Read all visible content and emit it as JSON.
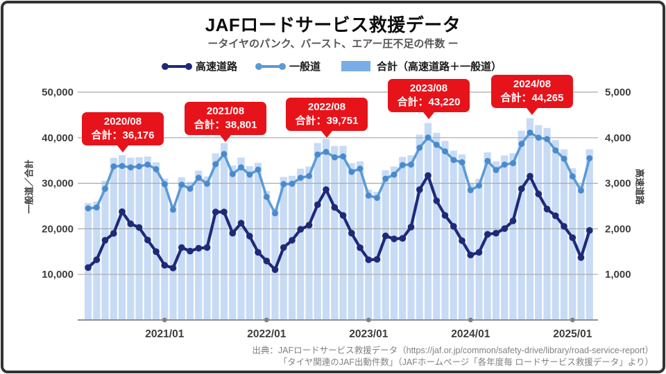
{
  "header": {
    "title": "JAFロードサービス救援データ",
    "subtitle": "ータイヤのパンク、バースト、エアー圧不足の件数 ー"
  },
  "legend": {
    "items": [
      {
        "label": "高速道路",
        "marker": "line-dots"
      },
      {
        "label": "一般道",
        "marker": "line-dots"
      },
      {
        "label": "合計（高速道路＋一般道）",
        "marker": "bar-swatch"
      }
    ]
  },
  "axes": {
    "left_title": "一般道／合計",
    "right_title": "高速道路",
    "left_ticks": [
      "50,000",
      "40,000",
      "30,000",
      "20,000",
      "10,000"
    ],
    "right_ticks": [
      "5,000",
      "4,000",
      "3,000",
      "2,000",
      "1,000"
    ],
    "x_ticks": [
      {
        "label": "2021/01",
        "month": "2021/01"
      },
      {
        "label": "2022/01",
        "month": "2022/01"
      },
      {
        "label": "2023/01",
        "month": "2023/01"
      },
      {
        "label": "2024/01",
        "month": "2024/01"
      },
      {
        "label": "2025/01",
        "month": "2025/01"
      }
    ]
  },
  "callouts": [
    {
      "date": "2020/08",
      "total": "合計：36,176"
    },
    {
      "date": "2021/08",
      "total": "合計：38,801"
    },
    {
      "date": "2022/08",
      "total": "合計：39,751"
    },
    {
      "date": "2023/08",
      "total": "合計：43,220"
    },
    {
      "date": "2024/08",
      "total": "合計：44,265"
    }
  ],
  "source": {
    "line1": "出典：JAFロードサービス救援データ（https://jaf.or.jp/common/safety-drive/library/road-service-report）",
    "line2": "「タイヤ関連のJAF出動件数」（JAFホームページ「各年度毎 ロードサービス救援データ」より）"
  },
  "colors": {
    "bar": "#c7dbf5",
    "bar_legend": "#7aace5",
    "general_line": "#5b9bd5",
    "general_dot": "#4a89cd",
    "highway_line": "#1e2a78",
    "red": "#e7131b",
    "grid": "#a8a8a8",
    "axis": "#8a8f98",
    "tick_text": "#3d3d3d",
    "x_dot": "#808080"
  },
  "chart_data": {
    "type": "bar+line",
    "title": "JAFロードサービス救援データ",
    "subtitle": "タイヤのパンク、バースト、エアー圧不足の件数",
    "x": [
      "2020/04",
      "2020/05",
      "2020/06",
      "2020/07",
      "2020/08",
      "2020/09",
      "2020/10",
      "2020/11",
      "2020/12",
      "2021/01",
      "2021/02",
      "2021/03",
      "2021/04",
      "2021/05",
      "2021/06",
      "2021/07",
      "2021/08",
      "2021/09",
      "2021/10",
      "2021/11",
      "2021/12",
      "2022/01",
      "2022/02",
      "2022/03",
      "2022/04",
      "2022/05",
      "2022/06",
      "2022/07",
      "2022/08",
      "2022/09",
      "2022/10",
      "2022/11",
      "2022/12",
      "2023/01",
      "2023/02",
      "2023/03",
      "2023/04",
      "2023/05",
      "2023/06",
      "2023/07",
      "2023/08",
      "2023/09",
      "2023/10",
      "2023/11",
      "2023/12",
      "2024/01",
      "2024/02",
      "2024/03",
      "2024/04",
      "2024/05",
      "2024/06",
      "2024/07",
      "2024/08",
      "2024/09",
      "2024/10",
      "2024/11",
      "2024/12",
      "2025/01",
      "2025/02",
      "2025/03"
    ],
    "series": [
      {
        "name": "一般道",
        "type": "line",
        "axis": "left",
        "values": [
          24500,
          24700,
          28800,
          33700,
          33800,
          33500,
          33700,
          34100,
          33090,
          29800,
          24200,
          29700,
          28800,
          31200,
          29900,
          34200,
          36430,
          32000,
          33500,
          31900,
          33000,
          27000,
          23400,
          29800,
          29900,
          31200,
          31600,
          36300,
          36891,
          35700,
          35900,
          32500,
          33200,
          27300,
          26800,
          31000,
          31900,
          34000,
          34100,
          37800,
          40050,
          38450,
          37000,
          35100,
          34600,
          28500,
          29500,
          34900,
          32900,
          34100,
          34400,
          38650,
          41110,
          40000,
          39700,
          37200,
          35400,
          31500,
          28400,
          35500
        ]
      },
      {
        "name": "高速道路",
        "type": "line",
        "axis": "right",
        "values": [
          1150,
          1320,
          1750,
          1900,
          2376,
          2110,
          2030,
          1755,
          1500,
          1200,
          1140,
          1590,
          1510,
          1575,
          1590,
          2370,
          2371,
          1905,
          2125,
          1840,
          1485,
          1295,
          1105,
          1590,
          1750,
          1990,
          2080,
          2530,
          2860,
          2470,
          2295,
          1905,
          1585,
          1320,
          1330,
          1845,
          1780,
          1790,
          2040,
          2860,
          3170,
          2615,
          2295,
          2055,
          1740,
          1425,
          1485,
          1880,
          1905,
          2005,
          2175,
          2880,
          3155,
          2765,
          2435,
          2285,
          2055,
          1805,
          1370,
          1965
        ]
      },
      {
        "name": "合計（高速道路＋一般道）",
        "type": "bar",
        "axis": "left",
        "values": [
          25650,
          26020,
          30550,
          35600,
          36176,
          35610,
          35730,
          35855,
          34590,
          31000,
          25340,
          31290,
          30310,
          32775,
          31490,
          36570,
          38801,
          33905,
          35625,
          33740,
          34485,
          28295,
          24505,
          31390,
          31650,
          33190,
          33680,
          38830,
          39751,
          38170,
          38195,
          34405,
          34785,
          28620,
          28130,
          32845,
          33680,
          35790,
          36140,
          40660,
          43220,
          41065,
          39295,
          37155,
          36340,
          29925,
          30985,
          36780,
          34805,
          36105,
          36575,
          41530,
          44265,
          42765,
          42135,
          39485,
          37455,
          33305,
          29770,
          37465
        ]
      }
    ],
    "left_axis": {
      "label": "一般道／合計",
      "range": [
        0,
        50000
      ],
      "grid_step": 10000
    },
    "right_axis": {
      "label": "高速道路",
      "range": [
        0,
        5000
      ],
      "grid_step": 1000
    },
    "annotations": [
      {
        "x": "2020/08",
        "text": "2020/08 合計：36,176",
        "value": 36176
      },
      {
        "x": "2021/08",
        "text": "2021/08 合計：38,801",
        "value": 38801
      },
      {
        "x": "2022/08",
        "text": "2022/08 合計：39,751",
        "value": 39751
      },
      {
        "x": "2023/08",
        "text": "2023/08 合計：43,220",
        "value": 43220
      },
      {
        "x": "2024/08",
        "text": "2024/08 合計：44,265",
        "value": 44265
      }
    ],
    "legend_position": "top",
    "grid": true
  }
}
